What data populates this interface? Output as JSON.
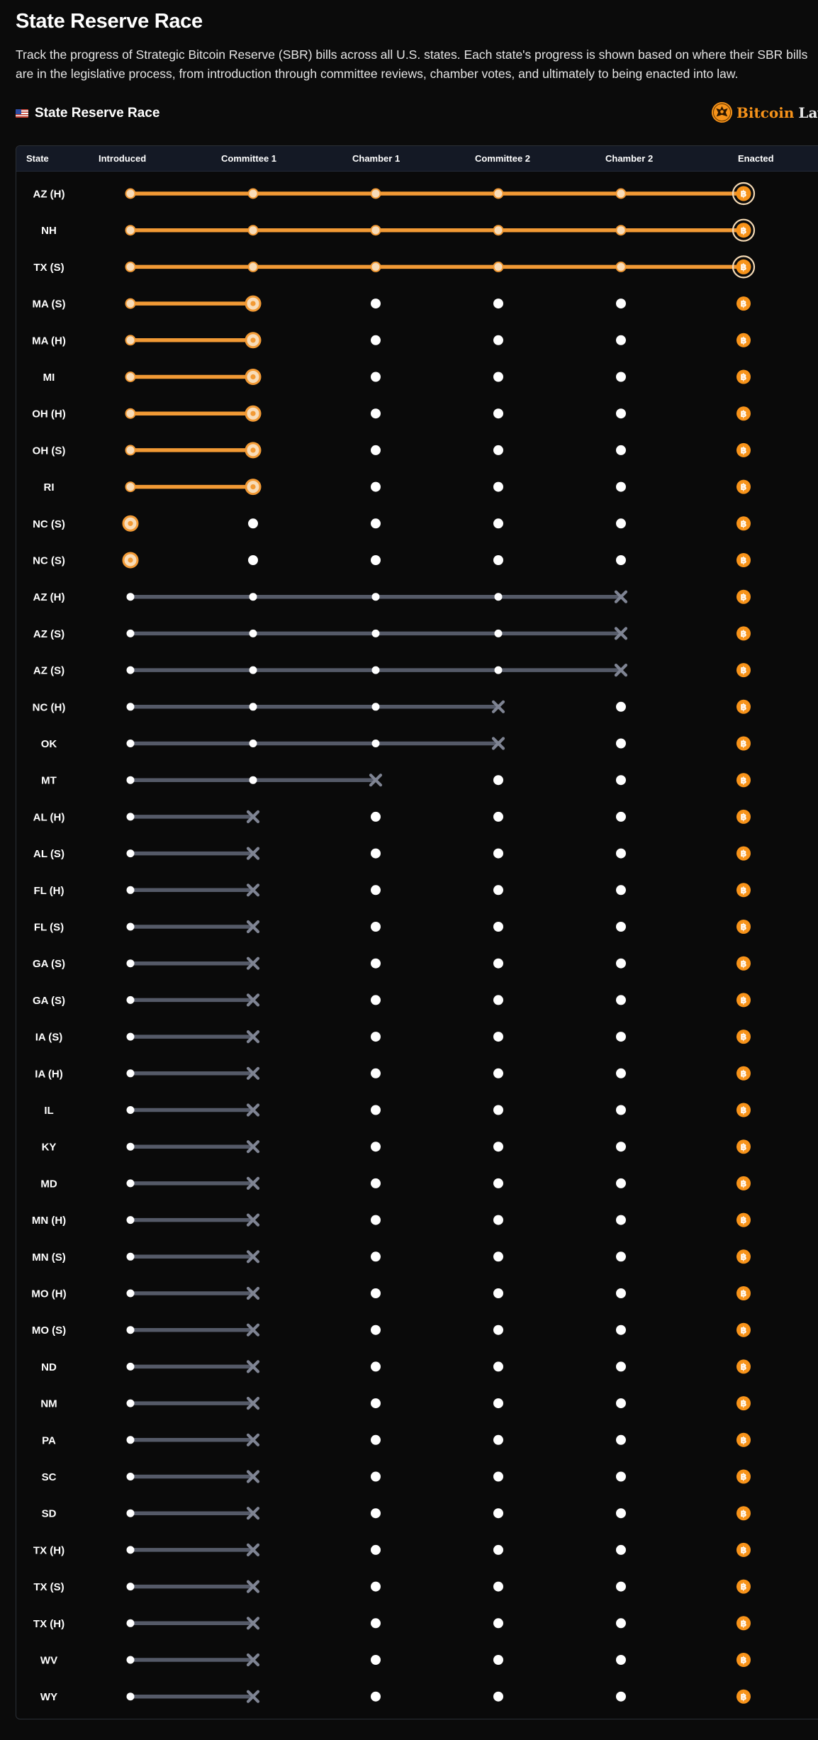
{
  "header": {
    "title": "State Reserve Race",
    "description": "Track the progress of Strategic Bitcoin Reserve (SBR) bills across all U.S. states. Each state's progress is shown based on where their SBR bills are in the legislative process, from introduction through committee reviews, chamber votes, and ultimately to being enacted into law.",
    "section_title": "State Reserve Race",
    "flag_icon": "us-flag-icon"
  },
  "brand": {
    "name_part1": "Bitcoin",
    "name_part2": "Laws",
    "logo_icon": "bitcoin-laws-eagle-logo-icon"
  },
  "colors": {
    "background": "#0b0b0b",
    "accent_orange": "#f7931a",
    "progress_orange": "#f29a35",
    "failed_gray": "#555a68",
    "pending_white": "#ffffff"
  },
  "table": {
    "columns": [
      "State",
      "Introduced",
      "Committee 1",
      "Chamber 1",
      "Committee 2",
      "Chamber 2",
      "Enacted"
    ],
    "rows": [
      {
        "state": "AZ (H)",
        "stage": 6,
        "status": "active"
      },
      {
        "state": "NH",
        "stage": 6,
        "status": "active"
      },
      {
        "state": "TX (S)",
        "stage": 6,
        "status": "active"
      },
      {
        "state": "MA (S)",
        "stage": 2,
        "status": "active"
      },
      {
        "state": "MA (H)",
        "stage": 2,
        "status": "active"
      },
      {
        "state": "MI",
        "stage": 2,
        "status": "active"
      },
      {
        "state": "OH (H)",
        "stage": 2,
        "status": "active"
      },
      {
        "state": "OH (S)",
        "stage": 2,
        "status": "active"
      },
      {
        "state": "RI",
        "stage": 2,
        "status": "active"
      },
      {
        "state": "NC (S)",
        "stage": 1,
        "status": "active"
      },
      {
        "state": "NC (S)",
        "stage": 1,
        "status": "active"
      },
      {
        "state": "AZ (H)",
        "stage": 5,
        "status": "failed"
      },
      {
        "state": "AZ (S)",
        "stage": 5,
        "status": "failed"
      },
      {
        "state": "AZ (S)",
        "stage": 5,
        "status": "failed"
      },
      {
        "state": "NC (H)",
        "stage": 4,
        "status": "failed"
      },
      {
        "state": "OK",
        "stage": 4,
        "status": "failed"
      },
      {
        "state": "MT",
        "stage": 3,
        "status": "failed"
      },
      {
        "state": "AL (H)",
        "stage": 2,
        "status": "failed"
      },
      {
        "state": "AL (S)",
        "stage": 2,
        "status": "failed"
      },
      {
        "state": "FL (H)",
        "stage": 2,
        "status": "failed"
      },
      {
        "state": "FL (S)",
        "stage": 2,
        "status": "failed"
      },
      {
        "state": "GA (S)",
        "stage": 2,
        "status": "failed"
      },
      {
        "state": "GA (S)",
        "stage": 2,
        "status": "failed"
      },
      {
        "state": "IA (S)",
        "stage": 2,
        "status": "failed"
      },
      {
        "state": "IA (H)",
        "stage": 2,
        "status": "failed"
      },
      {
        "state": "IL",
        "stage": 2,
        "status": "failed"
      },
      {
        "state": "KY",
        "stage": 2,
        "status": "failed"
      },
      {
        "state": "MD",
        "stage": 2,
        "status": "failed"
      },
      {
        "state": "MN (H)",
        "stage": 2,
        "status": "failed"
      },
      {
        "state": "MN (S)",
        "stage": 2,
        "status": "failed"
      },
      {
        "state": "MO (H)",
        "stage": 2,
        "status": "failed"
      },
      {
        "state": "MO (S)",
        "stage": 2,
        "status": "failed"
      },
      {
        "state": "ND",
        "stage": 2,
        "status": "failed"
      },
      {
        "state": "NM",
        "stage": 2,
        "status": "failed"
      },
      {
        "state": "PA",
        "stage": 2,
        "status": "failed"
      },
      {
        "state": "SC",
        "stage": 2,
        "status": "failed"
      },
      {
        "state": "SD",
        "stage": 2,
        "status": "failed"
      },
      {
        "state": "TX (H)",
        "stage": 2,
        "status": "failed"
      },
      {
        "state": "TX (S)",
        "stage": 2,
        "status": "failed"
      },
      {
        "state": "TX (H)",
        "stage": 2,
        "status": "failed"
      },
      {
        "state": "WV",
        "stage": 2,
        "status": "failed"
      },
      {
        "state": "WY",
        "stage": 2,
        "status": "failed"
      }
    ]
  }
}
